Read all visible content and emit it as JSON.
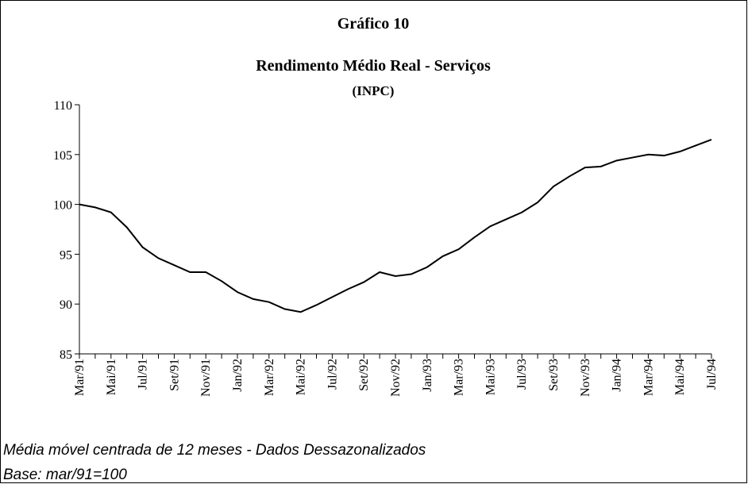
{
  "chart_data": {
    "type": "line",
    "title": "Gráfico 10",
    "subtitle": "Rendimento Médio Real - Serviços",
    "subtitle2": "(INPC)",
    "categories": [
      "Mar/91",
      null,
      "Mai/91",
      null,
      "Jul/91",
      null,
      "Set/91",
      null,
      "Nov/91",
      null,
      "Jan/92",
      null,
      "Mar/92",
      null,
      "Mai/92",
      null,
      "Jul/92",
      null,
      "Set/92",
      null,
      "Nov/92",
      null,
      "Jan/93",
      null,
      "Mar/93",
      null,
      "Mai/93",
      null,
      "Jul/93",
      null,
      "Set/93",
      null,
      "Nov/93",
      null,
      "Jan/94",
      null,
      "Mar/94",
      null,
      "Mai/94",
      null,
      "Jul/94"
    ],
    "values": [
      100,
      99.7,
      99.2,
      97.7,
      95.7,
      94.6,
      93.9,
      93.2,
      93.2,
      92.3,
      91.2,
      90.5,
      90.2,
      89.5,
      89.2,
      89.9,
      90.7,
      91.5,
      92.2,
      93.2,
      92.8,
      93.0,
      93.7,
      94.8,
      95.5,
      96.7,
      97.8,
      98.5,
      99.2,
      100.2,
      101.8,
      102.8,
      103.7,
      103.8,
      104.4,
      104.7,
      105.0,
      104.9,
      105.3,
      105.9,
      106.5
    ],
    "color": "#000000",
    "ylim": [
      85,
      110
    ],
    "yticks": [
      85,
      90,
      95,
      100,
      105,
      110
    ],
    "grid": false,
    "notes": [
      "Média móvel centrada de 12 meses - Dados Dessazonalizados",
      "Base: mar/91=100"
    ]
  }
}
